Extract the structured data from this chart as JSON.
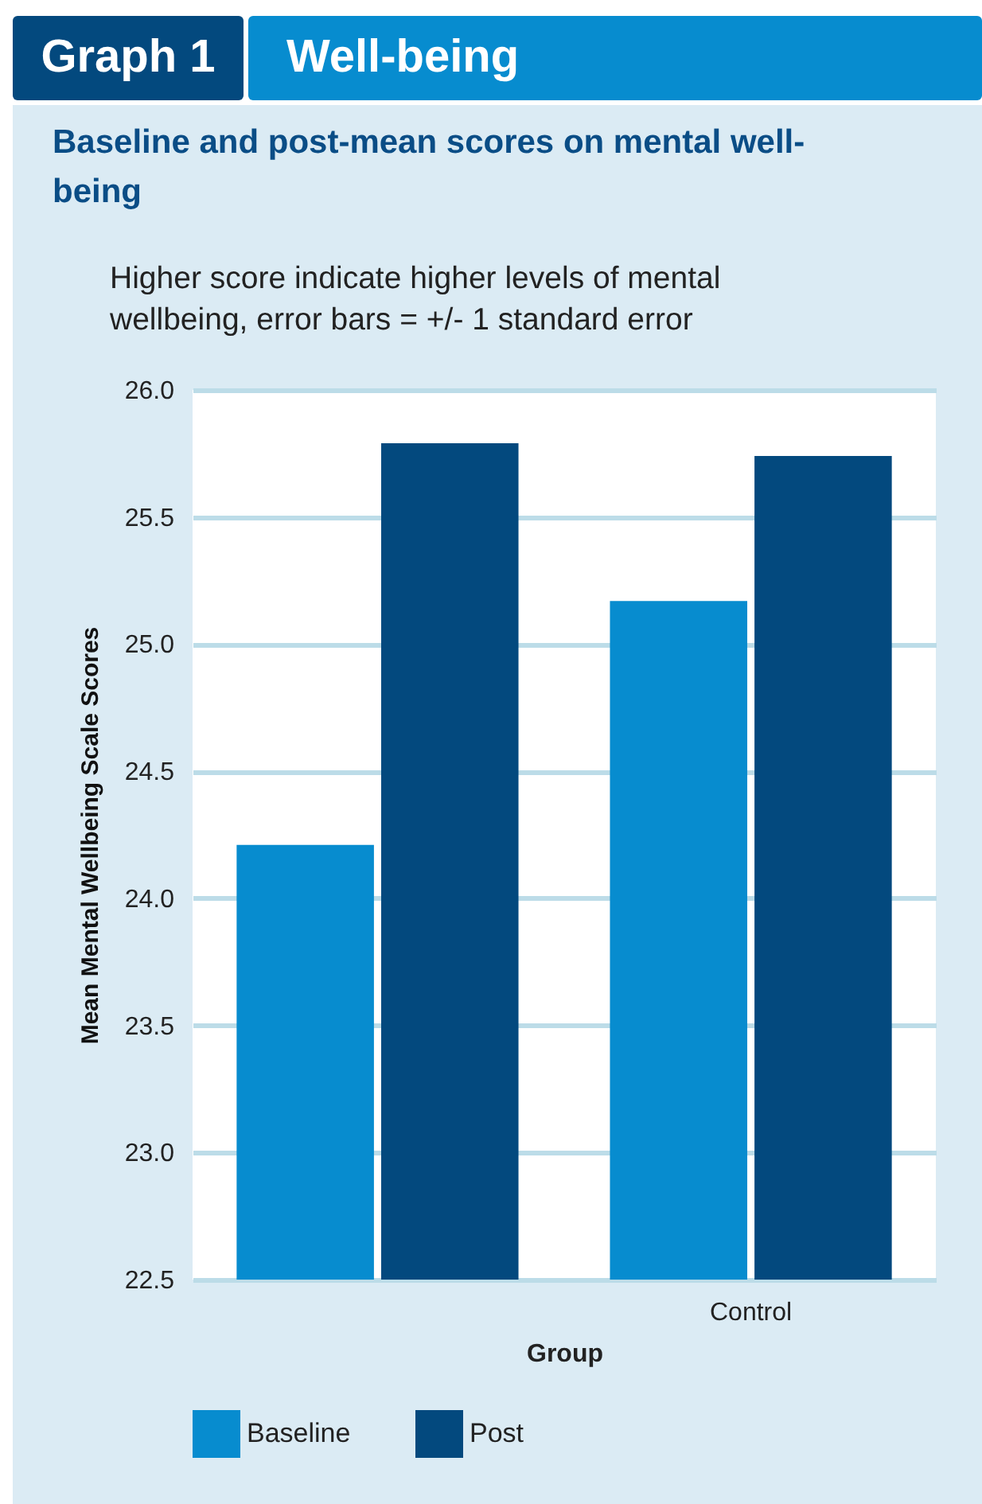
{
  "chart_data": {
    "type": "bar",
    "title": "Well-being",
    "subtitle": "Baseline and post-mean scores on mental well-being",
    "annotations": [
      "Graph 1",
      "Higher score indicate higher levels of mental wellbeing, error bars = +/- 1 standard error"
    ],
    "xlabel": "Group",
    "ylabel": "Mean Mental Wellbeing Scale Scores",
    "categories": [
      null,
      "Control"
    ],
    "series": [
      {
        "name": "Baseline",
        "color": "#078ccf",
        "values": [
          24.21,
          25.17
        ]
      },
      {
        "name": "Post",
        "color": "#03497e",
        "values": [
          25.79,
          25.74
        ]
      }
    ],
    "ylim": [
      22.5,
      26.0
    ],
    "yticks": [
      {
        "value": 22.5,
        "label": "22.5"
      },
      {
        "value": 23,
        "label": "23.0"
      },
      {
        "value": 23.5,
        "label": "23.5"
      },
      {
        "value": 24,
        "label": "24.0"
      },
      {
        "value": 24.5,
        "label": "24.5"
      },
      {
        "value": 25,
        "label": "25.0"
      },
      {
        "value": 25.5,
        "label": "25.5"
      },
      {
        "value": 26,
        "label": "26.0"
      }
    ],
    "grid": "y",
    "legend": "bottom"
  }
}
